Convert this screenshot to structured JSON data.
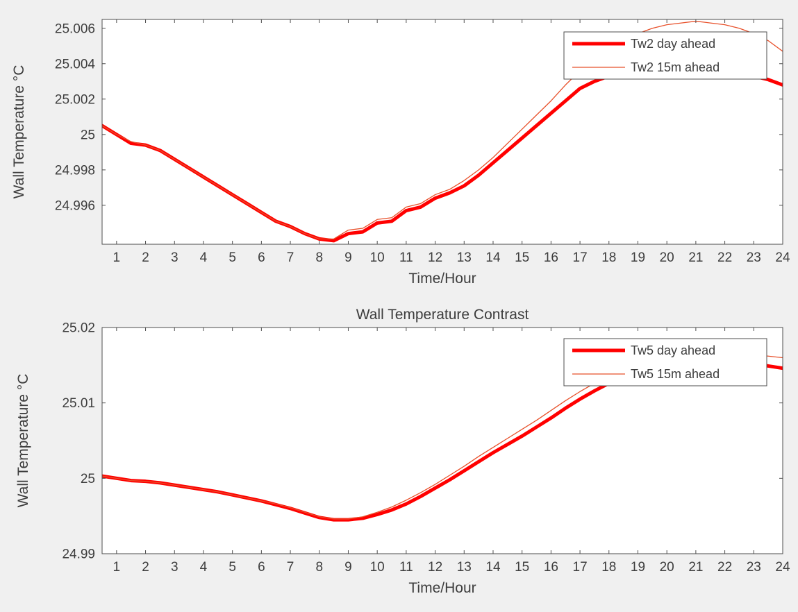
{
  "figure": {
    "background": "#f0f0f0",
    "plot_background": "#ffffff",
    "axis_color": "#4d4d4d",
    "text_color": "#3d3d3d"
  },
  "chart_data": [
    {
      "type": "line",
      "title": "",
      "xlabel": "Time/Hour",
      "ylabel": "Wall Temperature °C",
      "xlim": [
        0.5,
        24
      ],
      "ylim": [
        24.9938,
        25.0065
      ],
      "xticks": [
        1,
        2,
        3,
        4,
        5,
        6,
        7,
        8,
        9,
        10,
        11,
        12,
        13,
        14,
        15,
        16,
        17,
        18,
        19,
        20,
        21,
        22,
        23,
        24
      ],
      "yticks": [
        24.996,
        24.998,
        25,
        25.002,
        25.004,
        25.006
      ],
      "ytick_labels": [
        "24.996",
        "24.998",
        "25",
        "25.002",
        "25.004",
        "25.006"
      ],
      "grid": false,
      "legend_position": "northeast",
      "x": [
        0.5,
        1,
        1.5,
        2,
        2.5,
        3,
        3.5,
        4,
        4.5,
        5,
        5.5,
        6,
        6.5,
        7,
        7.5,
        8,
        8.5,
        9,
        9.5,
        10,
        10.5,
        11,
        11.5,
        12,
        12.5,
        13,
        13.5,
        14,
        14.5,
        15,
        15.5,
        16,
        16.5,
        17,
        17.5,
        18,
        18.5,
        19,
        19.5,
        20,
        20.5,
        21,
        21.5,
        22,
        22.5,
        23,
        23.5,
        24
      ],
      "series": [
        {
          "name": "Tw2 day ahead",
          "color": "#ff0000",
          "width": 5,
          "values": [
            25.0005,
            25.0,
            24.9995,
            24.9994,
            24.9991,
            24.9986,
            24.9981,
            24.9976,
            24.9971,
            24.9966,
            24.9961,
            24.9956,
            24.9951,
            24.9948,
            24.9944,
            24.9941,
            24.994,
            24.9944,
            24.9945,
            24.995,
            24.9951,
            24.9957,
            24.9959,
            24.9964,
            24.9967,
            24.9971,
            24.9977,
            24.9984,
            24.9991,
            24.9998,
            25.0005,
            25.0012,
            25.0019,
            25.0026,
            25.003,
            25.0033,
            25.0035,
            25.0036,
            25.0037,
            25.0038,
            25.0038,
            25.0038,
            25.0037,
            25.0036,
            25.0035,
            25.0033,
            25.0031,
            25.0028
          ]
        },
        {
          "name": "Tw2 15m ahead",
          "color": "#e8502a",
          "width": 1.3,
          "values": [
            25.0005,
            25.0,
            24.9996,
            24.9994,
            24.9991,
            24.9986,
            24.9981,
            24.9976,
            24.9971,
            24.9966,
            24.9961,
            24.9956,
            24.9951,
            24.9948,
            24.9944,
            24.9941,
            24.9941,
            24.9946,
            24.9947,
            24.9952,
            24.9953,
            24.9959,
            24.9961,
            24.9966,
            24.9969,
            24.9974,
            24.998,
            24.9987,
            24.9995,
            25.0003,
            25.0011,
            25.0019,
            25.0028,
            25.0036,
            25.0043,
            25.0049,
            25.0054,
            25.0057,
            25.006,
            25.0062,
            25.0063,
            25.0064,
            25.0063,
            25.0062,
            25.006,
            25.0057,
            25.0053,
            25.0047
          ]
        }
      ]
    },
    {
      "type": "line",
      "title": "Wall Temperature Contrast",
      "xlabel": "Time/Hour",
      "ylabel": "Wall Temperature °C",
      "xlim": [
        0.5,
        24
      ],
      "ylim": [
        24.99,
        25.02
      ],
      "xticks": [
        1,
        2,
        3,
        4,
        5,
        6,
        7,
        8,
        9,
        10,
        11,
        12,
        13,
        14,
        15,
        16,
        17,
        18,
        19,
        20,
        21,
        22,
        23,
        24
      ],
      "yticks": [
        24.99,
        25,
        25.01,
        25.02
      ],
      "ytick_labels": [
        "24.99",
        "25",
        "25.01",
        "25.02"
      ],
      "grid": false,
      "legend_position": "northeast",
      "x": [
        0.5,
        1,
        1.5,
        2,
        2.5,
        3,
        3.5,
        4,
        4.5,
        5,
        5.5,
        6,
        6.5,
        7,
        7.5,
        8,
        8.5,
        9,
        9.5,
        10,
        10.5,
        11,
        11.5,
        12,
        12.5,
        13,
        13.5,
        14,
        14.5,
        15,
        15.5,
        16,
        16.5,
        17,
        17.5,
        18,
        18.5,
        19,
        19.5,
        20,
        20.5,
        21,
        21.5,
        22,
        22.5,
        23,
        23.5,
        24
      ],
      "series": [
        {
          "name": "Tw5 day ahead",
          "color": "#ff0000",
          "width": 5,
          "values": [
            25.0003,
            25.0,
            24.9997,
            24.9996,
            24.9994,
            24.9991,
            24.9988,
            24.9985,
            24.9982,
            24.9978,
            24.9974,
            24.997,
            24.9965,
            24.996,
            24.9954,
            24.9948,
            24.9945,
            24.9945,
            24.9947,
            24.9952,
            24.9958,
            24.9966,
            24.9976,
            24.9987,
            24.9998,
            25.001,
            25.0022,
            25.0034,
            25.0045,
            25.0056,
            25.0068,
            25.008,
            25.0093,
            25.0105,
            25.0116,
            25.0126,
            25.0134,
            25.0141,
            25.0146,
            25.015,
            25.0153,
            25.0155,
            25.0155,
            25.0155,
            25.0153,
            25.0151,
            25.0149,
            25.0146
          ]
        },
        {
          "name": "Tw5 15m ahead",
          "color": "#e8502a",
          "width": 1.3,
          "values": [
            25.0003,
            25.0,
            24.9997,
            24.9996,
            24.9994,
            24.9991,
            24.9988,
            24.9985,
            24.9982,
            24.9978,
            24.9974,
            24.997,
            24.9966,
            24.9961,
            24.9955,
            24.9949,
            24.9946,
            24.9946,
            24.9949,
            24.9955,
            24.9962,
            24.9971,
            24.9981,
            24.9992,
            25.0004,
            25.0016,
            25.0029,
            25.0041,
            25.0053,
            25.0065,
            25.0077,
            25.009,
            25.0103,
            25.0115,
            25.0126,
            25.0136,
            25.0145,
            25.0152,
            25.0157,
            25.0161,
            25.0164,
            25.0166,
            25.0167,
            25.0167,
            25.0166,
            25.0164,
            25.0162,
            25.016
          ]
        }
      ]
    }
  ]
}
